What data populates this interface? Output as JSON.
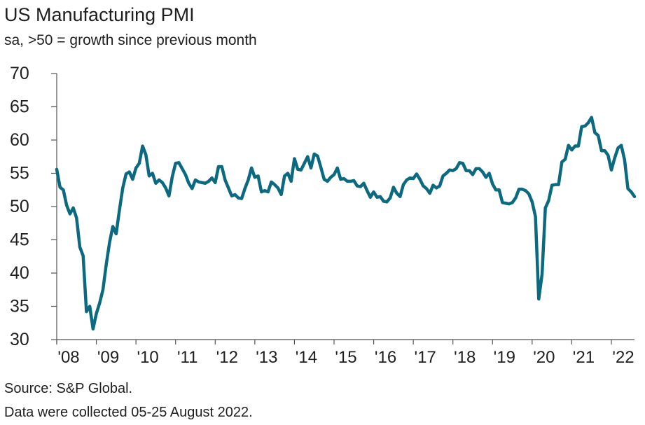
{
  "chart_data": {
    "type": "line",
    "title": "US Manufacturing PMI",
    "subtitle": "sa, >50 = growth since previous month",
    "xlabel": "",
    "ylabel": "",
    "ylim": [
      30,
      70
    ],
    "yticks": [
      "70",
      "65",
      "60",
      "55",
      "50",
      "45",
      "40",
      "35",
      "30"
    ],
    "xticks": [
      "'08",
      "'09",
      "'10",
      "'11",
      "'12",
      "'13",
      "'14",
      "'15",
      "'16",
      "'17",
      "'18",
      "'19",
      "'20",
      "'21",
      "'22"
    ],
    "grid": false,
    "line_color": "#0b6a80",
    "series": [
      {
        "values": [
          55.6,
          52.9,
          52.5,
          50.2,
          48.9,
          49.8,
          48.3,
          43.9,
          42.6,
          34.2,
          35.0,
          31.6,
          33.9,
          35.5,
          37.5,
          41.3,
          44.6,
          47.0,
          45.9,
          49.5,
          52.8,
          54.9,
          55.2,
          54.1,
          55.8,
          56.5,
          59.1,
          57.8,
          54.6,
          55.0,
          53.5,
          54.0,
          53.6,
          52.8,
          51.6,
          54.5,
          56.5,
          56.6,
          55.7,
          54.8,
          53.5,
          52.7,
          54.0,
          53.7,
          53.6,
          53.5,
          53.8,
          54.3,
          53.6,
          56.0,
          56.0,
          54.0,
          52.8,
          51.6,
          51.8,
          51.3,
          51.2,
          52.7,
          54.0,
          55.8,
          54.4,
          54.6,
          52.2,
          52.4,
          52.2,
          53.7,
          53.3,
          52.8,
          51.8,
          54.6,
          55.0,
          53.8,
          57.2,
          55.6,
          55.5,
          56.5,
          57.5,
          55.8,
          57.9,
          57.6,
          55.9,
          54.1,
          53.8,
          54.4,
          54.8,
          55.8,
          54.1,
          54.2,
          53.8,
          53.8,
          53.9,
          53.1,
          53.0,
          53.5,
          52.4,
          51.4,
          52.2,
          51.4,
          51.5,
          50.8,
          50.7,
          51.3,
          52.9,
          52.0,
          51.5,
          53.3,
          54.0,
          54.3,
          54.2,
          54.9,
          54.1,
          53.1,
          52.7,
          52.0,
          53.2,
          52.8,
          53.1,
          54.6,
          55.0,
          55.5,
          55.4,
          55.7,
          56.6,
          56.5,
          55.4,
          55.4,
          54.8,
          55.7,
          55.7,
          55.2,
          54.4,
          55.0,
          53.4,
          52.5,
          52.5,
          50.6,
          50.5,
          50.4,
          50.6,
          51.3,
          52.6,
          52.6,
          52.4,
          51.9,
          50.7,
          48.5,
          36.1,
          39.8,
          49.8,
          50.9,
          53.2,
          53.3,
          53.3,
          56.7,
          57.1,
          59.2,
          58.5,
          59.1,
          59.1,
          62.0,
          62.1,
          62.6,
          63.4,
          61.1,
          60.7,
          58.4,
          58.4,
          57.7,
          55.5,
          57.3,
          58.8,
          59.2,
          57.0,
          52.7,
          52.2,
          51.5
        ]
      }
    ]
  },
  "footer": {
    "source": "Source: S&P Global.",
    "note": "Data were collected 05-25 August 2022."
  }
}
